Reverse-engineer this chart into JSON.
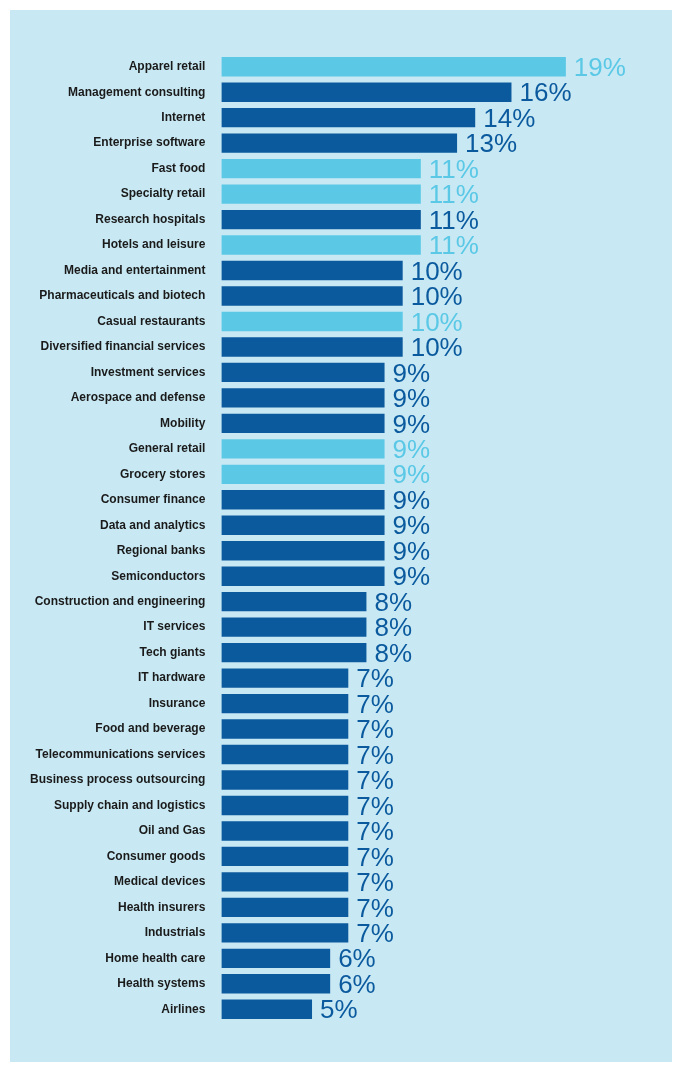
{
  "chart_data": {
    "type": "bar",
    "orientation": "horizontal",
    "categories": [
      "Apparel retail",
      "Management consulting",
      "Internet",
      "Enterprise software",
      "Fast food",
      "Specialty retail",
      "Research hospitals",
      "Hotels and leisure",
      "Media and entertainment",
      "Pharmaceuticals and biotech",
      "Casual restaurants",
      "Diversified financial services",
      "Investment services",
      "Aerospace and defense",
      "Mobility",
      "General retail",
      "Grocery stores",
      "Consumer finance",
      "Data and analytics",
      "Regional banks",
      "Semiconductors",
      "Construction and engineering",
      "IT services",
      "Tech giants",
      "IT hardware",
      "Insurance",
      "Food and beverage",
      "Telecommunications services",
      "Business process outsourcing",
      "Supply chain and logistics",
      "Oil and Gas",
      "Consumer goods",
      "Medical devices",
      "Health insurers",
      "Industrials",
      "Home health care",
      "Health systems",
      "Airlines"
    ],
    "values": [
      19,
      16,
      14,
      13,
      11,
      11,
      11,
      11,
      10,
      10,
      10,
      10,
      9,
      9,
      9,
      9,
      9,
      9,
      9,
      9,
      9,
      8,
      8,
      8,
      7,
      7,
      7,
      7,
      7,
      7,
      7,
      7,
      7,
      7,
      7,
      6,
      6,
      5
    ],
    "value_labels": [
      "19%",
      "16%",
      "14%",
      "13%",
      "11%",
      "11%",
      "11%",
      "11%",
      "10%",
      "10%",
      "10%",
      "10%",
      "9%",
      "9%",
      "9%",
      "9%",
      "9%",
      "9%",
      "9%",
      "9%",
      "9%",
      "8%",
      "8%",
      "8%",
      "7%",
      "7%",
      "7%",
      "7%",
      "7%",
      "7%",
      "7%",
      "7%",
      "7%",
      "7%",
      "7%",
      "6%",
      "6%",
      "5%"
    ],
    "colors": [
      "#5bc8e6",
      "#0b5a9e",
      "#0b5a9e",
      "#0b5a9e",
      "#5bc8e6",
      "#5bc8e6",
      "#0b5a9e",
      "#5bc8e6",
      "#0b5a9e",
      "#0b5a9e",
      "#5bc8e6",
      "#0b5a9e",
      "#0b5a9e",
      "#0b5a9e",
      "#0b5a9e",
      "#5bc8e6",
      "#5bc8e6",
      "#0b5a9e",
      "#0b5a9e",
      "#0b5a9e",
      "#0b5a9e",
      "#0b5a9e",
      "#0b5a9e",
      "#0b5a9e",
      "#0b5a9e",
      "#0b5a9e",
      "#0b5a9e",
      "#0b5a9e",
      "#0b5a9e",
      "#0b5a9e",
      "#0b5a9e",
      "#0b5a9e",
      "#0b5a9e",
      "#0b5a9e",
      "#0b5a9e",
      "#0b5a9e",
      "#0b5a9e",
      "#0b5a9e"
    ],
    "legend": false
  }
}
